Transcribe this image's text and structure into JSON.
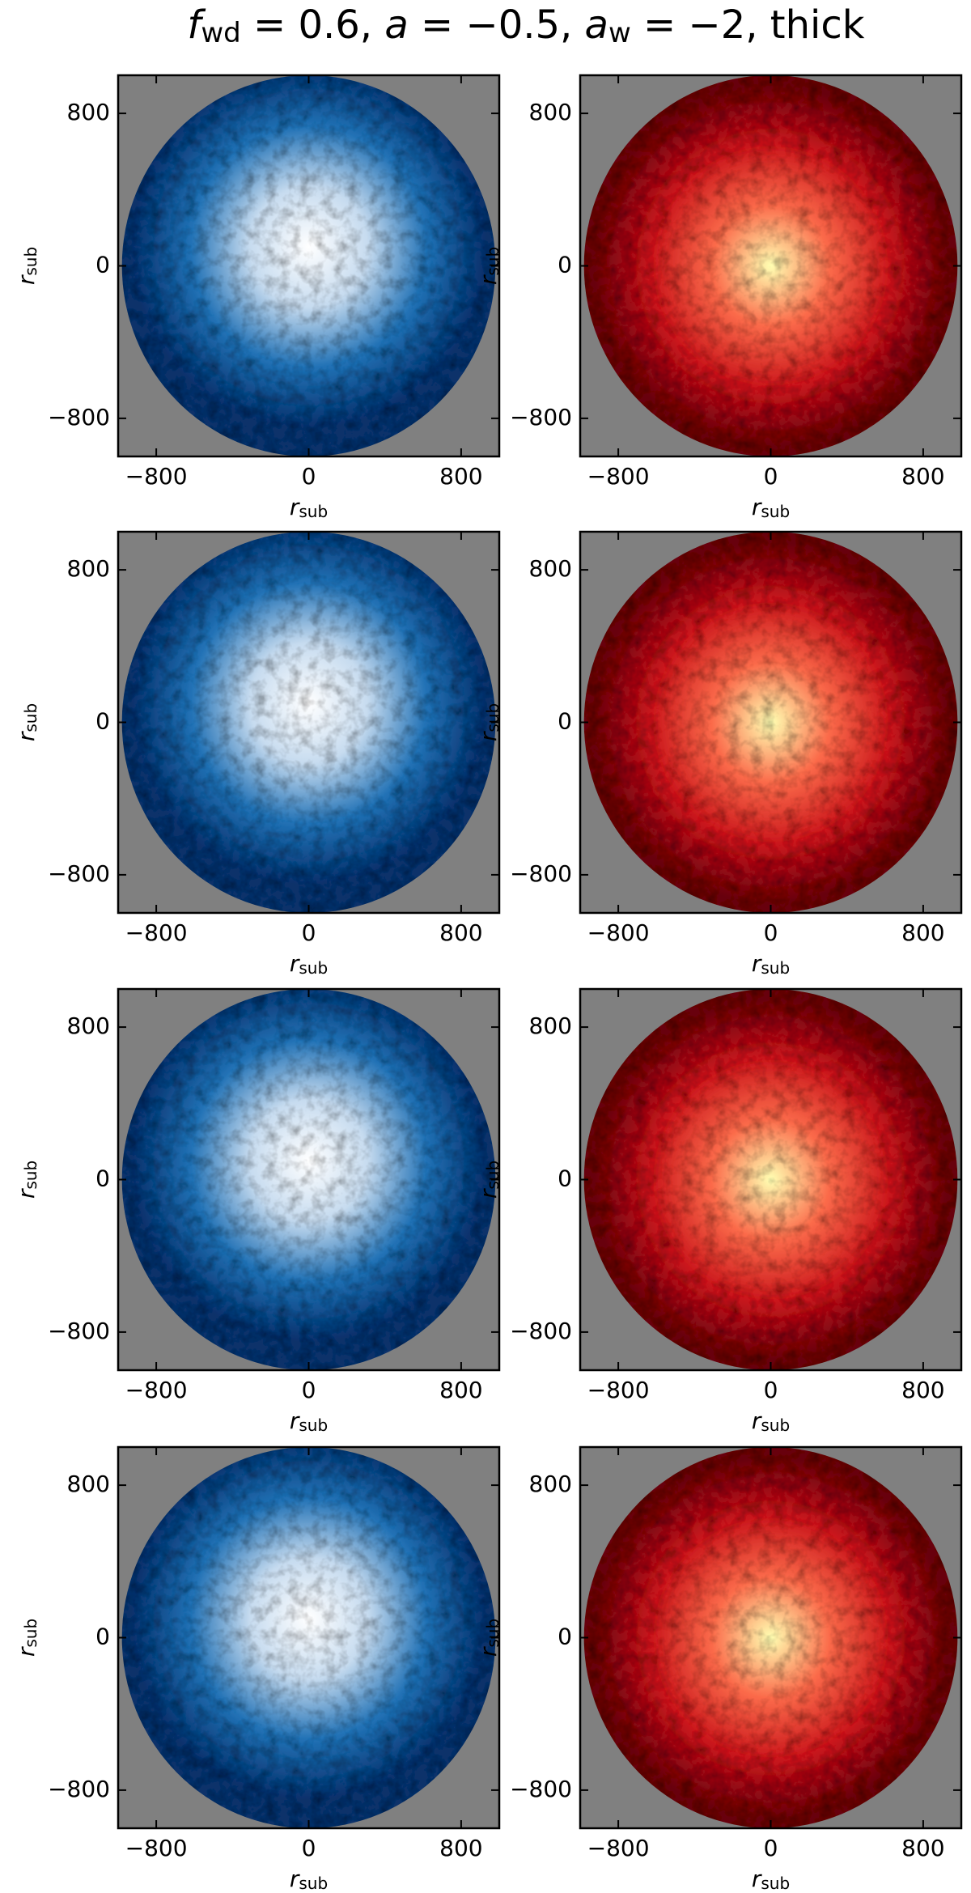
{
  "suptitle": [
    {
      "text": "f",
      "italic": true
    },
    {
      "text": "wd",
      "sub": true
    },
    {
      "text": " = 0.6, "
    },
    {
      "text": "a",
      "italic": true
    },
    {
      "text": " = −0.5, "
    },
    {
      "text": "a",
      "italic": true
    },
    {
      "text": "w",
      "sub": true
    },
    {
      "text": " = −2, thick"
    }
  ],
  "chart_data": [
    {
      "type": "image",
      "cmap": [
        "#08306b",
        "#2171b5",
        "#c6dbef",
        "#ffffff"
      ],
      "background": "#808080",
      "xlim": [
        -1000,
        1000
      ],
      "ylim": [
        -1000,
        1000
      ],
      "xticks": [
        {
          "value": -800,
          "label": "−800"
        },
        0,
        800
      ],
      "yticks": [
        {
          "value": -800,
          "label": "−800"
        },
        0,
        800
      ],
      "xlabel": {
        "text": "r",
        "sub": "sub"
      },
      "ylabel": {
        "text": "r",
        "sub": "sub"
      }
    },
    {
      "type": "image",
      "cmap": [
        "#67000d",
        "#cb181d",
        "#fb6a4a",
        "#ffffb2"
      ],
      "background": "#808080",
      "xlim": [
        -1000,
        1000
      ],
      "ylim": [
        -1000,
        1000
      ],
      "xticks": [
        {
          "value": -800,
          "label": "−800"
        },
        0,
        800
      ],
      "yticks": [
        {
          "value": -800,
          "label": "−800"
        },
        0,
        800
      ],
      "xlabel": {
        "text": "r",
        "sub": "sub"
      },
      "ylabel": {
        "text": "r",
        "sub": "sub"
      }
    },
    {
      "type": "image",
      "cmap": [
        "#08306b",
        "#2171b5",
        "#c6dbef",
        "#ffffff"
      ],
      "background": "#808080",
      "xlim": [
        -1000,
        1000
      ],
      "ylim": [
        -1000,
        1000
      ],
      "xticks": [
        {
          "value": -800,
          "label": "−800"
        },
        0,
        800
      ],
      "yticks": [
        {
          "value": -800,
          "label": "−800"
        },
        0,
        800
      ],
      "xlabel": {
        "text": "r",
        "sub": "sub"
      },
      "ylabel": {
        "text": "r",
        "sub": "sub"
      }
    },
    {
      "type": "image",
      "cmap": [
        "#67000d",
        "#cb181d",
        "#fb6a4a",
        "#ffffb2"
      ],
      "background": "#808080",
      "xlim": [
        -1000,
        1000
      ],
      "ylim": [
        -1000,
        1000
      ],
      "xticks": [
        {
          "value": -800,
          "label": "−800"
        },
        0,
        800
      ],
      "yticks": [
        {
          "value": -800,
          "label": "−800"
        },
        0,
        800
      ],
      "xlabel": {
        "text": "r",
        "sub": "sub"
      },
      "ylabel": {
        "text": "r",
        "sub": "sub"
      }
    },
    {
      "type": "image",
      "cmap": [
        "#08306b",
        "#2171b5",
        "#c6dbef",
        "#ffffff"
      ],
      "background": "#808080",
      "xlim": [
        -1000,
        1000
      ],
      "ylim": [
        -1000,
        1000
      ],
      "xticks": [
        {
          "value": -800,
          "label": "−800"
        },
        0,
        800
      ],
      "yticks": [
        {
          "value": -800,
          "label": "−800"
        },
        0,
        800
      ],
      "xlabel": {
        "text": "r",
        "sub": "sub"
      },
      "ylabel": {
        "text": "r",
        "sub": "sub"
      }
    },
    {
      "type": "image",
      "cmap": [
        "#67000d",
        "#cb181d",
        "#fb6a4a",
        "#ffffb2"
      ],
      "background": "#808080",
      "xlim": [
        -1000,
        1000
      ],
      "ylim": [
        -1000,
        1000
      ],
      "xticks": [
        {
          "value": -800,
          "label": "−800"
        },
        0,
        800
      ],
      "yticks": [
        {
          "value": -800,
          "label": "−800"
        },
        0,
        800
      ],
      "xlabel": {
        "text": "r",
        "sub": "sub"
      },
      "ylabel": {
        "text": "r",
        "sub": "sub"
      }
    },
    {
      "type": "image",
      "cmap": [
        "#08306b",
        "#2171b5",
        "#c6dbef",
        "#ffffff"
      ],
      "background": "#808080",
      "xlim": [
        -1000,
        1000
      ],
      "ylim": [
        -1000,
        1000
      ],
      "xticks": [
        {
          "value": -800,
          "label": "−800"
        },
        0,
        800
      ],
      "yticks": [
        {
          "value": -800,
          "label": "−800"
        },
        0,
        800
      ],
      "xlabel": {
        "text": "r",
        "sub": "sub"
      },
      "ylabel": {
        "text": "r",
        "sub": "sub"
      }
    },
    {
      "type": "image",
      "cmap": [
        "#67000d",
        "#cb181d",
        "#fb6a4a",
        "#ffffb2"
      ],
      "background": "#808080",
      "xlim": [
        -1000,
        1000
      ],
      "ylim": [
        -1000,
        1000
      ],
      "xticks": [
        {
          "value": -800,
          "label": "−800"
        },
        0,
        800
      ],
      "yticks": [
        {
          "value": -800,
          "label": "−800"
        },
        0,
        800
      ],
      "xlabel": {
        "text": "r",
        "sub": "sub"
      },
      "ylabel": {
        "text": "r",
        "sub": "sub"
      }
    }
  ]
}
